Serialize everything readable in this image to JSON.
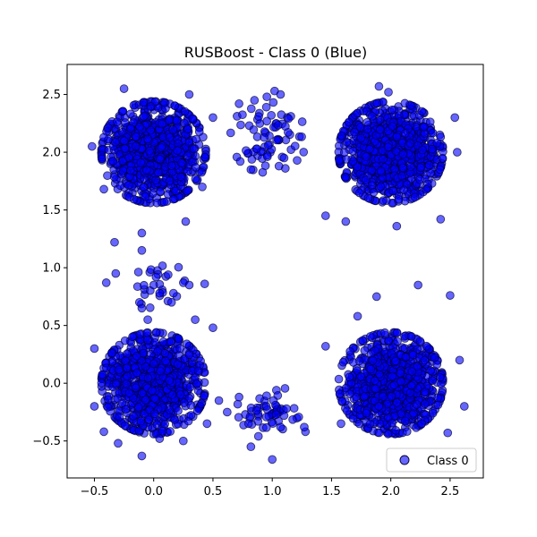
{
  "chart_data": {
    "type": "scatter",
    "title": "RUSBoost - Class 0 (Blue)",
    "xlabel": "",
    "ylabel": "",
    "xlim": [
      -0.73,
      2.78
    ],
    "ylim": [
      -0.82,
      2.76
    ],
    "xticks": [
      -0.5,
      0.0,
      0.5,
      1.0,
      1.5,
      2.0,
      2.5
    ],
    "xtick_labels": [
      "−0.5",
      "0.0",
      "0.5",
      "1.0",
      "1.5",
      "2.0",
      "2.5"
    ],
    "yticks": [
      -0.5,
      0.0,
      0.5,
      1.0,
      1.5,
      2.0,
      2.5
    ],
    "ytick_labels": [
      "−0.5",
      "0.0",
      "0.5",
      "1.0",
      "1.5",
      "2.0",
      "2.5"
    ],
    "grid": false,
    "legend": {
      "position": "lower-right",
      "entries": [
        "Class 0"
      ]
    },
    "colors": {
      "marker_fill": "#0000ff",
      "marker_edge": "#000033",
      "marker_alpha": 0.6
    },
    "series": [
      {
        "name": "Class 0",
        "clusters": [
          {
            "center": [
              0.0,
              2.0
            ],
            "spread": 0.2,
            "count": 900
          },
          {
            "center": [
              2.0,
              2.0
            ],
            "spread": 0.2,
            "count": 900
          },
          {
            "center": [
              0.0,
              0.0
            ],
            "spread": 0.2,
            "count": 900
          },
          {
            "center": [
              2.0,
              0.0
            ],
            "spread": 0.2,
            "count": 900
          },
          {
            "center": [
              0.97,
              2.15
            ],
            "spread": 0.15,
            "count": 70
          },
          {
            "center": [
              0.97,
              -0.22
            ],
            "spread": 0.12,
            "count": 50
          },
          {
            "center": [
              0.0,
              0.85
            ],
            "spread": 0.12,
            "count": 25
          }
        ],
        "points": [
          [
            -0.52,
            2.05
          ],
          [
            0.34,
            2.03
          ],
          [
            -0.25,
            2.55
          ],
          [
            0.3,
            2.5
          ],
          [
            -0.42,
            1.68
          ],
          [
            0.27,
            1.4
          ],
          [
            0.5,
            2.3
          ],
          [
            0.41,
            1.7
          ],
          [
            0.72,
            2.42
          ],
          [
            0.73,
            1.92
          ],
          [
            0.85,
            2.45
          ],
          [
            1.02,
            2.53
          ],
          [
            1.07,
            2.5
          ],
          [
            0.82,
            1.85
          ],
          [
            1.1,
            1.95
          ],
          [
            0.87,
            2.03
          ],
          [
            1.9,
            2.57
          ],
          [
            1.98,
            2.52
          ],
          [
            1.45,
            1.45
          ],
          [
            2.42,
            1.42
          ],
          [
            2.54,
            2.3
          ],
          [
            2.56,
            2.0
          ],
          [
            2.05,
            1.36
          ],
          [
            1.62,
            1.4
          ],
          [
            1.88,
            0.75
          ],
          [
            2.23,
            0.85
          ],
          [
            2.5,
            0.76
          ],
          [
            1.72,
            0.58
          ],
          [
            1.45,
            0.32
          ],
          [
            2.58,
            0.2
          ],
          [
            2.26,
            -0.35
          ],
          [
            2.48,
            -0.43
          ],
          [
            1.58,
            -0.35
          ],
          [
            2.62,
            -0.2
          ],
          [
            -0.5,
            0.3
          ],
          [
            -0.42,
            -0.42
          ],
          [
            -0.3,
            -0.52
          ],
          [
            0.5,
            0.48
          ],
          [
            0.45,
            -0.35
          ],
          [
            0.25,
            -0.5
          ],
          [
            -0.1,
            -0.63
          ],
          [
            0.05,
            -0.48
          ],
          [
            0.35,
            0.55
          ],
          [
            0.55,
            -0.15
          ],
          [
            -0.5,
            -0.2
          ],
          [
            -0.33,
            1.22
          ],
          [
            -0.32,
            0.95
          ],
          [
            -0.4,
            0.87
          ],
          [
            -0.1,
            1.3
          ],
          [
            -0.1,
            1.15
          ],
          [
            0.0,
            0.85
          ],
          [
            0.02,
            0.92
          ],
          [
            0.05,
            0.78
          ],
          [
            -0.12,
            0.7
          ],
          [
            -0.1,
            0.65
          ],
          [
            0.25,
            0.87
          ],
          [
            0.43,
            0.86
          ],
          [
            0.3,
            0.85
          ],
          [
            -0.05,
            0.55
          ],
          [
            0.62,
            -0.25
          ],
          [
            0.72,
            -0.12
          ],
          [
            0.8,
            -0.35
          ],
          [
            0.82,
            -0.55
          ],
          [
            1.0,
            -0.66
          ],
          [
            1.12,
            -0.22
          ],
          [
            1.28,
            -0.42
          ],
          [
            1.27,
            -0.38
          ],
          [
            1.07,
            -0.38
          ],
          [
            0.88,
            -0.33
          ],
          [
            1.1,
            -0.28
          ],
          [
            0.95,
            -0.2
          ]
        ]
      }
    ]
  }
}
